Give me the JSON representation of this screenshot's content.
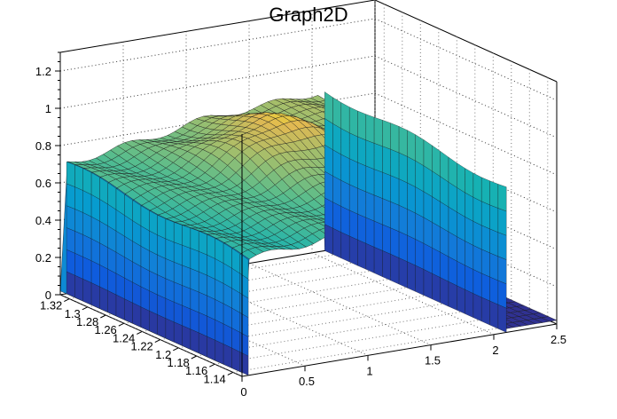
{
  "chart_data": {
    "type": "surface",
    "title": "Graph2D",
    "xlabel": "",
    "ylabel": "",
    "zlabel": "",
    "x_ticks": [
      "0",
      "0.5",
      "1",
      "1.5",
      "2",
      "2.5"
    ],
    "y_ticks": [
      "1.32",
      "1.3",
      "1.28",
      "1.26",
      "1.24",
      "1.22",
      "1.2",
      "1.18",
      "1.16",
      "1.14"
    ],
    "z_ticks": [
      "0",
      "0.2",
      "0.4",
      "0.6",
      "0.8",
      "1",
      "1.2"
    ],
    "xlim": [
      0,
      2.5
    ],
    "ylim": [
      1.13,
      1.33
    ],
    "zlim": [
      0,
      1.3
    ],
    "grid": true,
    "colormap": "viridis-like (blue to yellow)",
    "surface_description_values": {
      "x_support": [
        0.05,
        2.1
      ],
      "plateau_height_range": [
        0.6,
        1.0
      ],
      "peak_height": 0.92
    }
  }
}
